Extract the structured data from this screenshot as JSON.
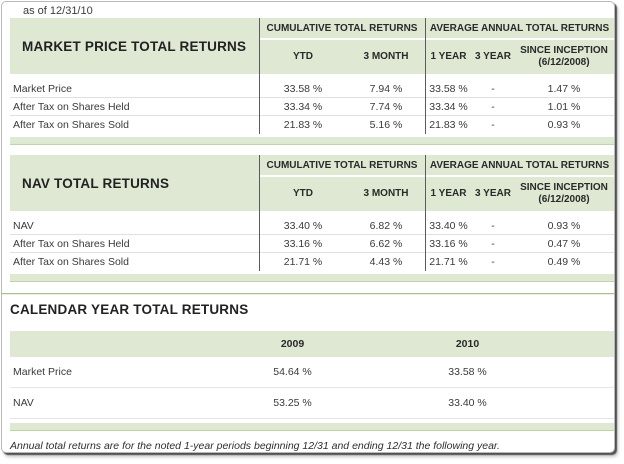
{
  "page": {
    "as_of": "as of 12/31/10"
  },
  "colors": {
    "band_green": "#dee8d3",
    "divider_dark": "#5b5b5b",
    "section_rule_green": "#a9c292"
  },
  "return_tables": [
    {
      "title": "MARKET PRICE TOTAL RETURNS",
      "group_headers": {
        "cumulative": "CUMULATIVE TOTAL RETURNS",
        "average": "AVERAGE ANNUAL TOTAL RETURNS"
      },
      "columns": {
        "ytd": "YTD",
        "three_month": "3 MONTH",
        "one_year": "1 YEAR",
        "three_year": "3 YEAR",
        "since_inception": "SINCE INCEPTION",
        "since_inception_date": "(6/12/2008)"
      },
      "rows": [
        {
          "label": "Market Price",
          "values": [
            "33.58 %",
            "7.94 %",
            "33.58 %",
            "-",
            "1.47 %"
          ]
        },
        {
          "label": "After Tax on Shares Held",
          "values": [
            "33.34 %",
            "7.74 %",
            "33.34 %",
            "-",
            "1.01 %"
          ]
        },
        {
          "label": "After Tax on Shares Sold",
          "values": [
            "21.83 %",
            "5.16 %",
            "21.83 %",
            "-",
            "0.93 %"
          ]
        }
      ]
    },
    {
      "title": "NAV TOTAL RETURNS",
      "group_headers": {
        "cumulative": "CUMULATIVE TOTAL RETURNS",
        "average": "AVERAGE ANNUAL TOTAL RETURNS"
      },
      "columns": {
        "ytd": "YTD",
        "three_month": "3 MONTH",
        "one_year": "1 YEAR",
        "three_year": "3 YEAR",
        "since_inception": "SINCE INCEPTION",
        "since_inception_date": "(6/12/2008)"
      },
      "rows": [
        {
          "label": "NAV",
          "values": [
            "33.40 %",
            "6.82 %",
            "33.40 %",
            "-",
            "0.93 %"
          ]
        },
        {
          "label": "After Tax on Shares Held",
          "values": [
            "33.16 %",
            "6.62 %",
            "33.16 %",
            "-",
            "0.47 %"
          ]
        },
        {
          "label": "After Tax on Shares Sold",
          "values": [
            "21.71 %",
            "4.43 %",
            "21.71 %",
            "-",
            "0.49 %"
          ]
        }
      ]
    }
  ],
  "calendar_table": {
    "title": "CALENDAR YEAR TOTAL RETURNS",
    "columns": {
      "y2009": "2009",
      "y2010": "2010"
    },
    "rows": [
      {
        "label": "Market Price",
        "values": [
          "54.64 %",
          "33.58 %"
        ]
      },
      {
        "label": "NAV",
        "values": [
          "53.25 %",
          "33.40 %"
        ]
      }
    ]
  },
  "footnote": "Annual total returns are for the noted 1-year periods beginning 12/31 and ending 12/31 the following year."
}
